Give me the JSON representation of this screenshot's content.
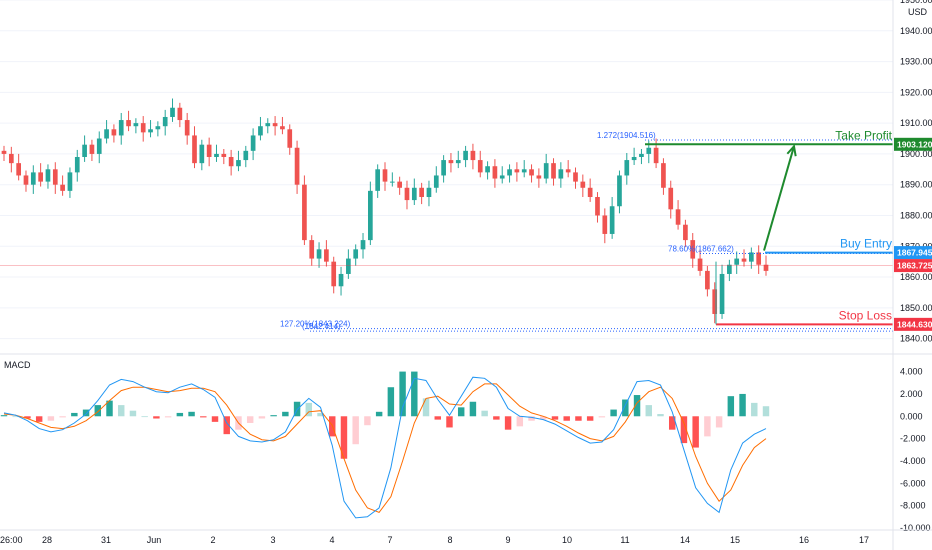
{
  "chart_data": [
    {
      "type": "candlestick",
      "title": "",
      "currency": "USD",
      "colors": {
        "up": "#26a69a",
        "down": "#ef5350",
        "target": "#1e8a2e",
        "entry": "#2196f3",
        "stop": "#f23645",
        "fib": "#2962ff",
        "last_price": "#f23645"
      },
      "ylim": [
        1835,
        1950
      ],
      "y_ticks": [
        "1950.000",
        "1940.000",
        "1930.000",
        "1920.000",
        "1910.000",
        "1900.000",
        "1890.000",
        "1880.000",
        "1870.000",
        "1860.000",
        "1850.000",
        "1840.000"
      ],
      "x_ticks": [
        "26:00",
        "28",
        "31",
        "Jun",
        "2",
        "3",
        "4",
        "7",
        "8",
        "9",
        "10",
        "11",
        "14",
        "15",
        "16",
        "17"
      ],
      "close_series": [
        1900,
        1897,
        1893,
        1890,
        1894,
        1891,
        1895,
        1890,
        1888,
        1894,
        1899,
        1903,
        1900,
        1905,
        1908,
        1906,
        1911,
        1909,
        1910,
        1907,
        1908,
        1909,
        1912,
        1915,
        1911,
        1906,
        1897,
        1903,
        1899,
        1900,
        1899,
        1896,
        1898,
        1901,
        1906,
        1909,
        1910,
        1909,
        1908,
        1902,
        1890,
        1872,
        1866,
        1869,
        1865,
        1857,
        1861,
        1866,
        1869,
        1872,
        1888,
        1895,
        1891,
        1891,
        1889,
        1885,
        1889,
        1886,
        1889,
        1893,
        1898,
        1897,
        1898,
        1901,
        1898,
        1894,
        1896,
        1892,
        1893,
        1895,
        1894,
        1895,
        1893,
        1892,
        1897,
        1892,
        1895,
        1894,
        1891,
        1889,
        1886,
        1880,
        1874,
        1883,
        1893,
        1898,
        1899,
        1900,
        1902,
        1897,
        1889,
        1882,
        1877,
        1872,
        1866,
        1862,
        1856,
        1848,
        1861,
        1864,
        1866,
        1865,
        1868,
        1864,
        1862
      ],
      "annotations": [
        {
          "label": "Take Profit",
          "value": 1903.12,
          "tag": "1903.120"
        },
        {
          "label": "Buy Entry",
          "value": 1867.945,
          "tag": "1867.945"
        },
        {
          "label": "Stop Loss",
          "value": 1844.63,
          "tag": "1844.630"
        }
      ],
      "last_price_tag": "1863.725",
      "fib_labels": [
        {
          "text": "1.272(1904.516)",
          "value": 1904.516
        },
        {
          "text": "78.60%(1867.662)",
          "value": 1867.662
        },
        {
          "text": "127.20%(1843.224)",
          "value": 1843.224
        },
        {
          "text": "(1842.414)",
          "value": 1842.414
        }
      ]
    },
    {
      "type": "macd",
      "title": "MACD",
      "ylim": [
        -10,
        4.5
      ],
      "y_ticks": [
        "4.000",
        "2.000",
        "0.000",
        "-2.000",
        "-4.000",
        "-6.000",
        "-8.000",
        "-10.000"
      ],
      "macd_line": [
        0.3,
        0.1,
        -0.4,
        -1.1,
        -1.4,
        -1.2,
        -0.6,
        0.2,
        1.4,
        2.8,
        3.3,
        3.1,
        2.6,
        2.2,
        2.1,
        2.6,
        2.9,
        2.4,
        1.7,
        -0.6,
        -1.8,
        -2.2,
        -2.3,
        -2.1,
        -1.4,
        0.6,
        1.6,
        0.8,
        -2.6,
        -7.6,
        -9.1,
        -9.0,
        -8.2,
        -4.6,
        0.8,
        3.4,
        3.2,
        1.5,
        0.1,
        1.8,
        3.5,
        3.4,
        2.6,
        0.7,
        0.0,
        -0.1,
        -0.3,
        -0.7,
        -1.3,
        -1.9,
        -2.4,
        -2.3,
        -1.2,
        1.0,
        3.1,
        3.2,
        2.8,
        0.4,
        -3.0,
        -6.4,
        -7.8,
        -8.6,
        -4.8,
        -2.4,
        -1.6,
        -1.1
      ],
      "signal_line": [
        0.2,
        0.1,
        -0.2,
        -0.6,
        -1.0,
        -1.1,
        -0.9,
        -0.4,
        0.4,
        1.4,
        2.3,
        2.6,
        2.6,
        2.4,
        2.2,
        2.3,
        2.5,
        2.5,
        2.2,
        1.0,
        -0.6,
        -1.6,
        -2.1,
        -2.2,
        -1.8,
        -0.7,
        0.4,
        0.5,
        -0.8,
        -3.8,
        -6.6,
        -8.2,
        -8.6,
        -7.2,
        -4.0,
        -0.6,
        1.6,
        1.8,
        1.1,
        1.0,
        2.2,
        2.9,
        2.9,
        1.9,
        0.9,
        0.3,
        0.0,
        -0.4,
        -0.9,
        -1.5,
        -2.0,
        -2.2,
        -1.8,
        -0.5,
        1.2,
        2.2,
        2.6,
        1.6,
        -0.6,
        -3.6,
        -6.0,
        -7.6,
        -6.6,
        -4.4,
        -2.8,
        -2.0
      ],
      "histogram": [
        0.1,
        0.0,
        -0.2,
        -0.5,
        -0.4,
        -0.1,
        0.3,
        0.6,
        1.0,
        1.4,
        1.0,
        0.5,
        0.0,
        -0.2,
        -0.1,
        0.3,
        0.4,
        -0.1,
        -0.5,
        -1.6,
        -1.2,
        -0.6,
        -0.2,
        0.1,
        0.4,
        1.3,
        1.2,
        0.3,
        -1.8,
        -3.8,
        -2.5,
        -0.8,
        0.4,
        2.6,
        4.0,
        4.0,
        1.6,
        -0.3,
        -1.0,
        0.8,
        1.3,
        0.5,
        -0.3,
        -1.2,
        -0.9,
        -0.4,
        -0.3,
        -0.3,
        -0.4,
        -0.4,
        -0.4,
        -0.1,
        0.6,
        1.5,
        1.9,
        1.0,
        0.2,
        -1.2,
        -2.4,
        -2.8,
        -1.8,
        -1.0,
        1.8,
        2.0,
        1.2,
        0.9
      ],
      "colors": {
        "macd": "#2196f3",
        "signal": "#ff6d00",
        "hist_up_strong": "#26a69a",
        "hist_up_weak": "#b2dfdb",
        "hist_down_strong": "#ff5252",
        "hist_down_weak": "#ffcdd2"
      }
    }
  ]
}
